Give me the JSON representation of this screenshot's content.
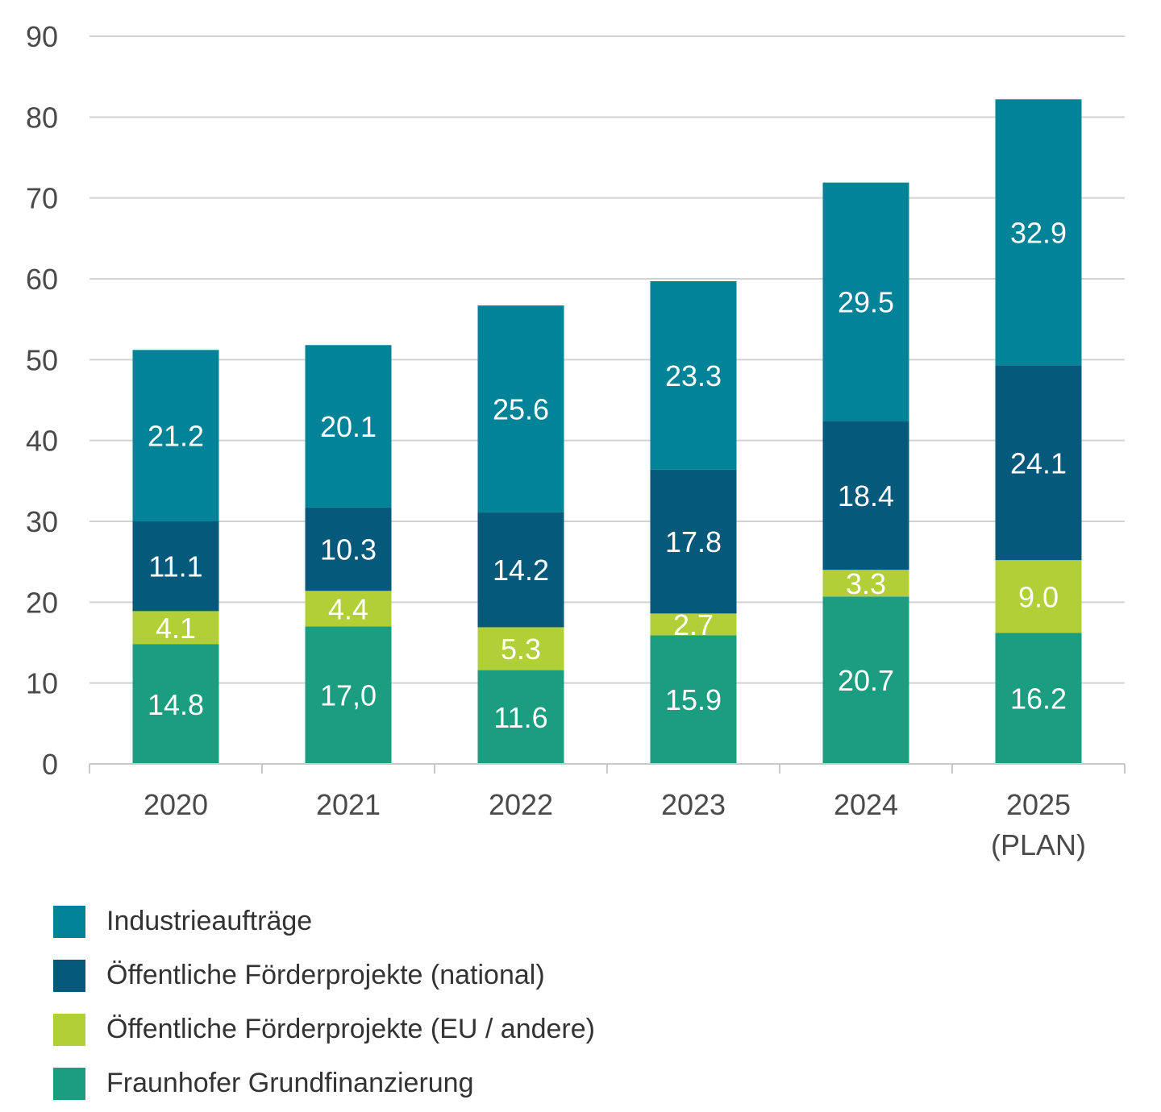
{
  "chart_data": {
    "type": "bar",
    "stacked": true,
    "categories": [
      "2020",
      "2021",
      "2022",
      "2023",
      "2024",
      "2025"
    ],
    "category_sublabels": [
      "",
      "",
      "",
      "",
      "",
      "(PLAN)"
    ],
    "ylim": [
      0,
      90
    ],
    "yticks": [
      0,
      10,
      20,
      30,
      40,
      50,
      60,
      70,
      80,
      90
    ],
    "grid": true,
    "legend_position": "bottom-left",
    "series": [
      {
        "name": "Fraunhofer Grundfinanzierung",
        "color": "#1b9e7f",
        "values": [
          14.8,
          17.0,
          11.6,
          15.9,
          20.7,
          16.2
        ],
        "labels": [
          "14.8",
          "17,0",
          "11.6",
          "15.9",
          "20.7",
          "16.2"
        ]
      },
      {
        "name": "Öffentliche Förderprojekte (EU / andere)",
        "color": "#b1cf36",
        "values": [
          4.1,
          4.4,
          5.3,
          2.7,
          3.3,
          9.0
        ],
        "labels": [
          "4.1",
          "4.4",
          "5.3",
          "2.7",
          "3.3",
          "9.0"
        ]
      },
      {
        "name": "Öffentliche Förderprojekte (national)",
        "color": "#055a7b",
        "values": [
          11.1,
          10.3,
          14.2,
          17.8,
          18.4,
          24.1
        ],
        "labels": [
          "11.1",
          "10.3",
          "14.2",
          "17.8",
          "18.4",
          "24.1"
        ]
      },
      {
        "name": "Industrieaufträge",
        "color": "#028397",
        "values": [
          21.2,
          20.1,
          25.6,
          23.3,
          29.5,
          32.9
        ],
        "labels": [
          "21.2",
          "20.1",
          "25.6",
          "23.3",
          "29.5",
          "32.9"
        ]
      }
    ]
  },
  "legend": {
    "items": [
      {
        "label": "Industrieaufträge",
        "color": "#028397"
      },
      {
        "label": "Öffentliche Förderprojekte (national)",
        "color": "#055a7b"
      },
      {
        "label": "Öffentliche Förderprojekte (EU / andere)",
        "color": "#b1cf36"
      },
      {
        "label": "Fraunhofer Grundfinanzierung",
        "color": "#1b9e7f"
      }
    ]
  }
}
